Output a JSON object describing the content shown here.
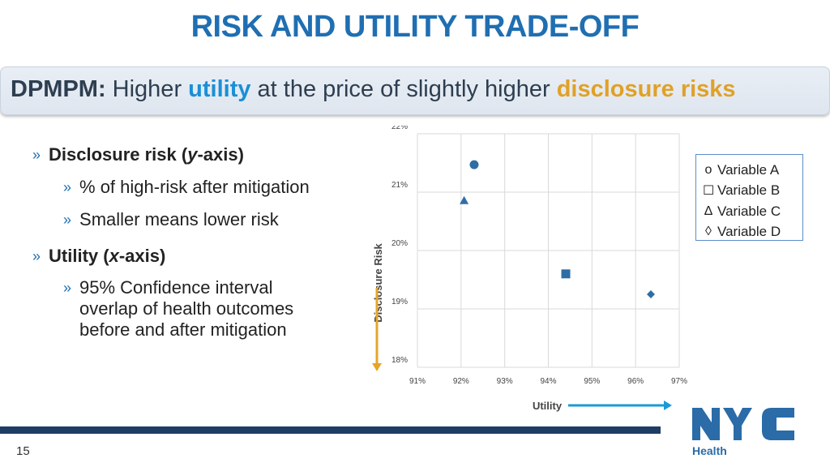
{
  "title": "RISK AND UTILITY TRADE-OFF",
  "banner": {
    "prefix": "DPMPM:",
    "text1": " Higher ",
    "highlight1": "utility",
    "text2": " at the price of slightly higher ",
    "highlight2": "disclosure risks"
  },
  "bullets": {
    "b1": "Disclosure risk (y-axis)",
    "b1_pre": "Disclosure risk (",
    "b1_var": "y",
    "b1_post": "-axis)",
    "b1_sub1": "% of high-risk after mitigation",
    "b1_sub2": "Smaller means lower risk",
    "b2_pre": "Utility (",
    "b2_var": "x",
    "b2_post": "-axis)",
    "b2_sub1_line1": "95% Confidence interval",
    "b2_sub1_line2": "overlap of health outcomes",
    "b2_sub1_line3": "before and after mitigation",
    "chevron": "»"
  },
  "chart_data": {
    "type": "scatter",
    "xlabel": "Utility",
    "ylabel": "Disclosure Risk",
    "xlim": [
      91,
      97
    ],
    "ylim": [
      18,
      22
    ],
    "x_ticks": [
      "91%",
      "92%",
      "93%",
      "94%",
      "95%",
      "96%",
      "97%"
    ],
    "y_ticks": [
      "18%",
      "19%",
      "20%",
      "21%",
      "22%"
    ],
    "grid": true,
    "legend_position": "right",
    "series": [
      {
        "name": "Variable A",
        "marker": "circle",
        "x": 92.3,
        "y": 21.47
      },
      {
        "name": "Variable B",
        "marker": "square",
        "x": 94.4,
        "y": 19.6
      },
      {
        "name": "Variable C",
        "marker": "triangle",
        "x": 92.07,
        "y": 20.85
      },
      {
        "name": "Variable D",
        "marker": "diamond",
        "x": 96.35,
        "y": 19.25
      }
    ],
    "marker_color": "#2e6ea6",
    "arrow_color_y": "#e8a42a",
    "arrow_color_x": "#1a9ad6"
  },
  "legend": {
    "items": [
      {
        "symbol": "o",
        "label": "Variable A"
      },
      {
        "symbol": "☐",
        "label": "Variable B"
      },
      {
        "symbol": "∆",
        "label": "Variable C"
      },
      {
        "symbol": "◊",
        "label": "Variable D"
      }
    ]
  },
  "footer": {
    "page_number": "15",
    "logo_text": "NYC",
    "logo_sub": "Health"
  },
  "colors": {
    "title": "#1f6fb2",
    "footer_bar": "#1f3c64",
    "logo_blue": "#2a6ba8"
  }
}
